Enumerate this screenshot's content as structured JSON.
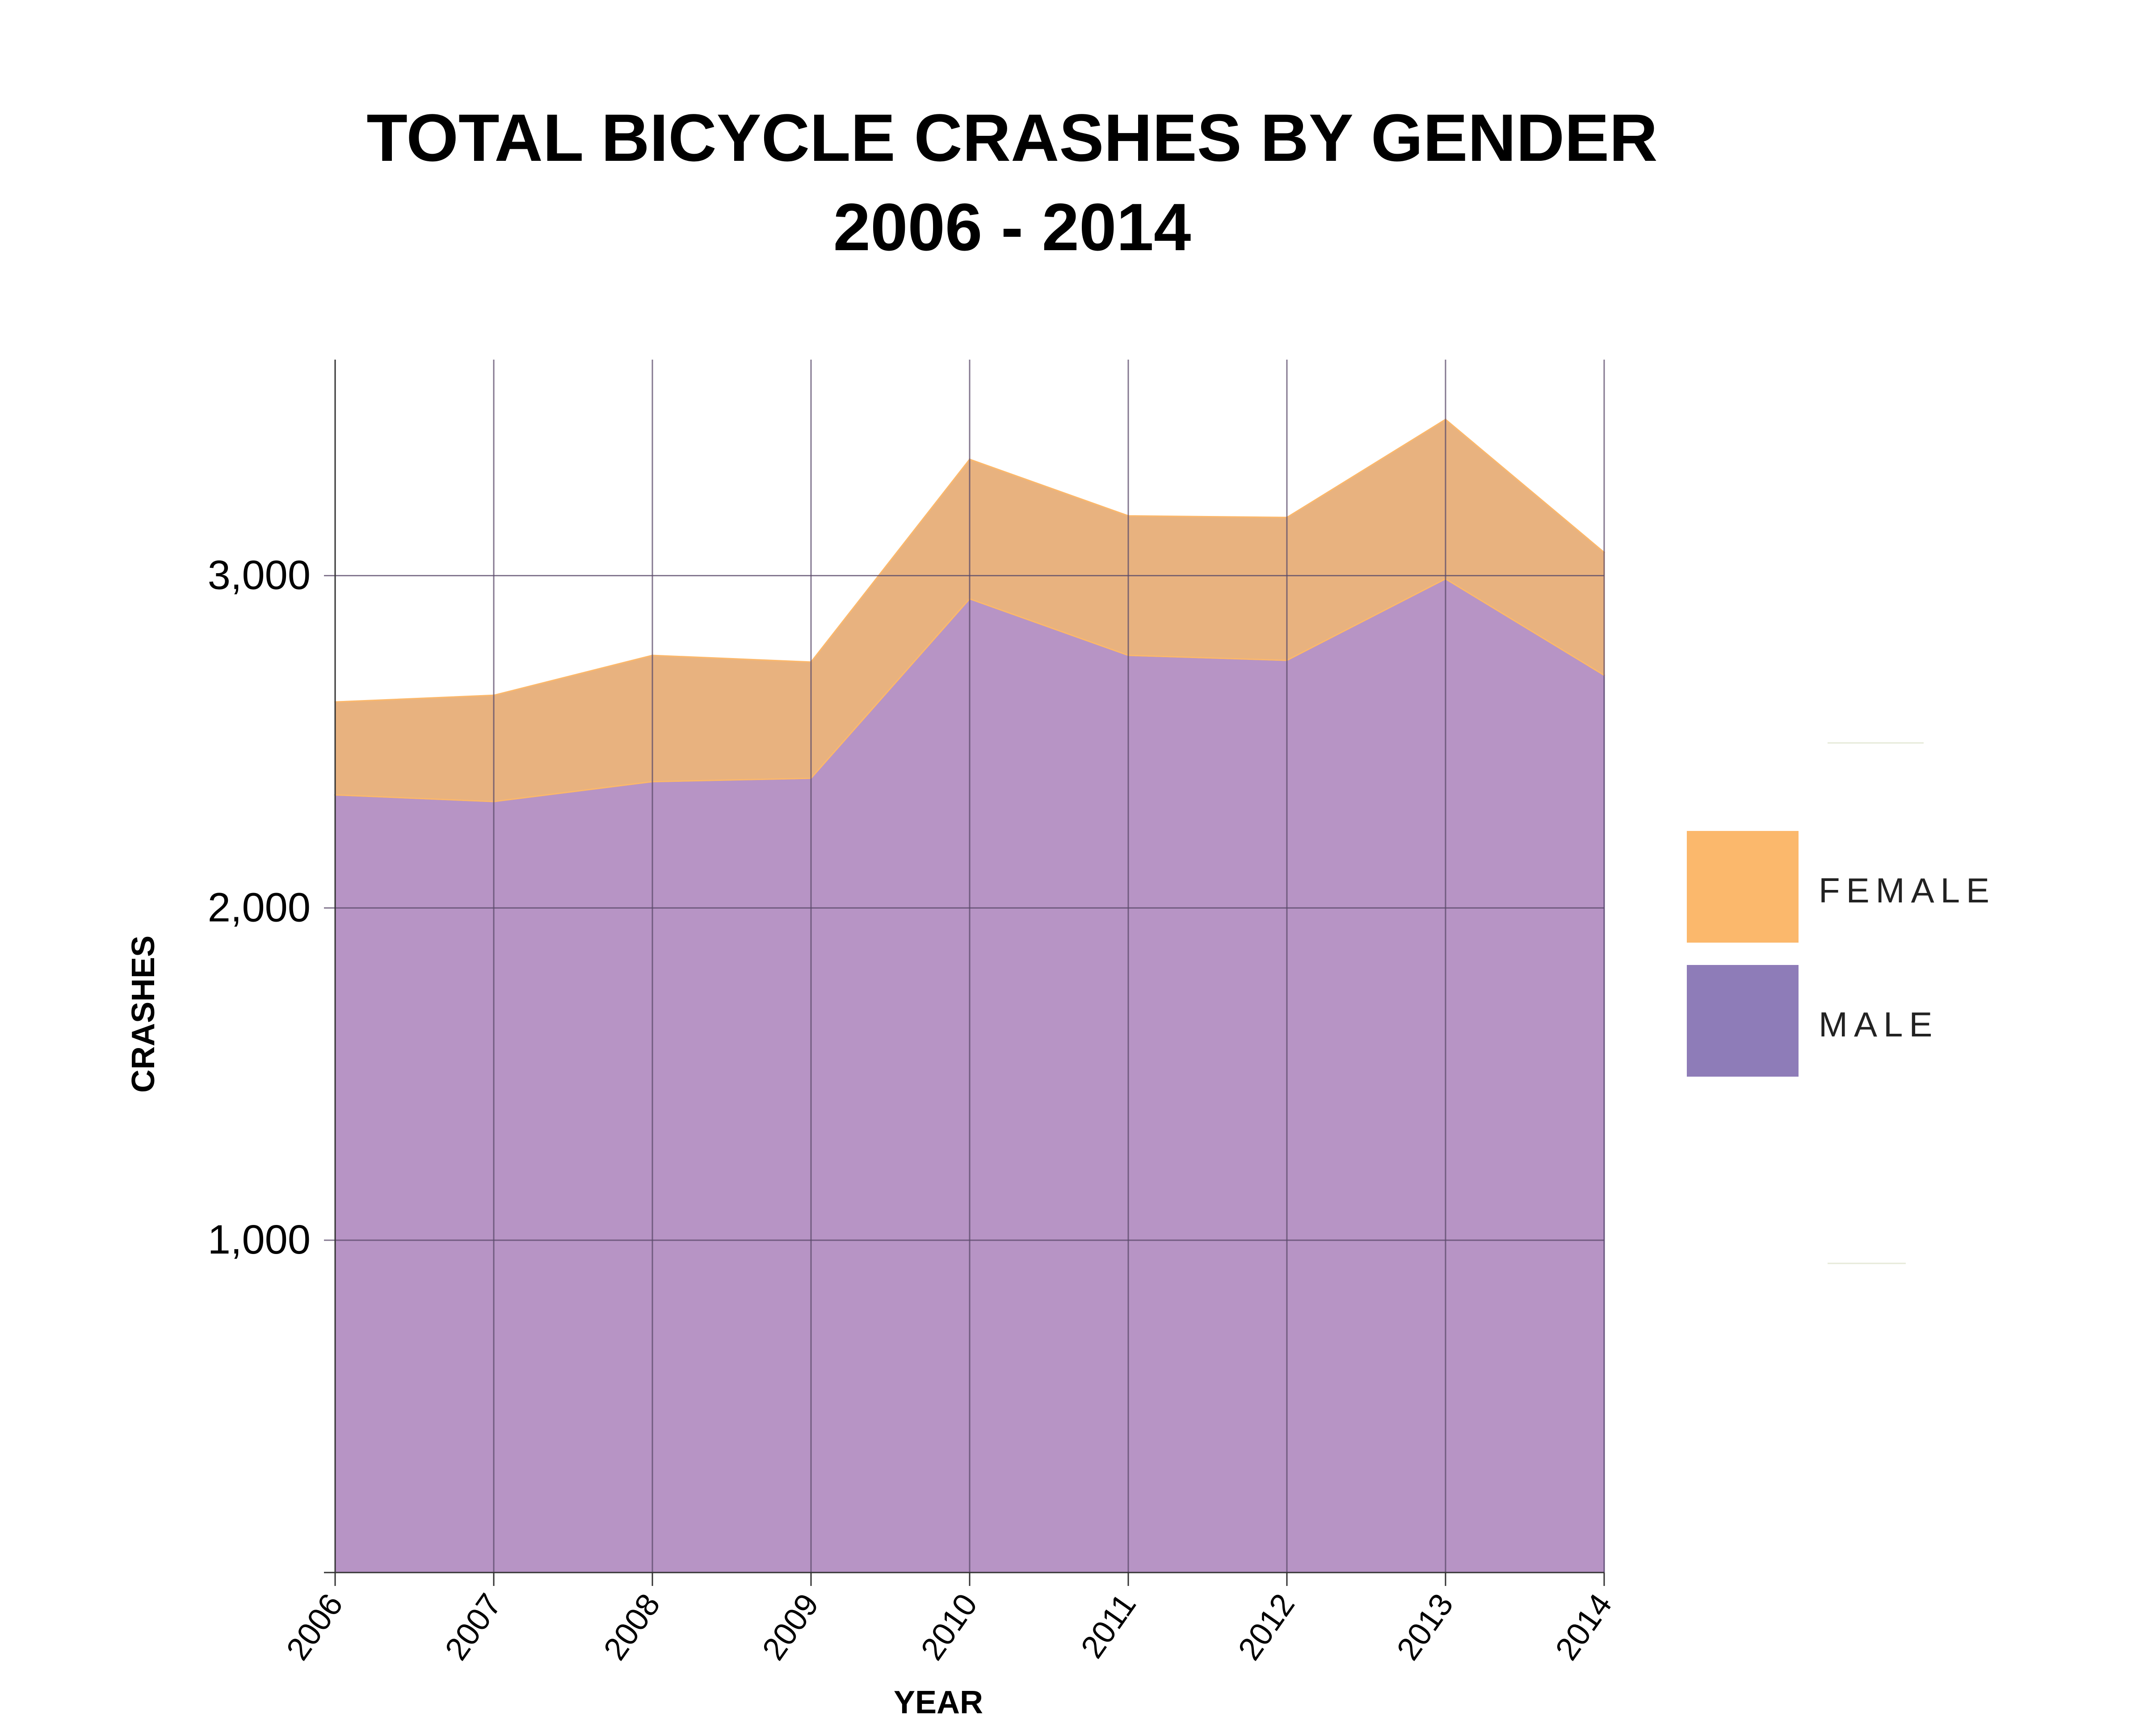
{
  "chart_data": {
    "type": "area",
    "stacked": true,
    "title_line1": "TOTAL BICYCLE CRASHES BY GENDER",
    "title_line2": "2006 - 2014",
    "xlabel": "YEAR",
    "ylabel": "CRASHES",
    "x": [
      "2006",
      "2007",
      "2008",
      "2009",
      "2010",
      "2011",
      "2012",
      "2013",
      "2014"
    ],
    "ylim": [
      0,
      3650
    ],
    "yticks": [
      1000,
      2000,
      3000
    ],
    "ytick_labels": [
      "1,000",
      "2,000",
      "3,000"
    ],
    "grid": true,
    "legend_position": "right",
    "series": [
      {
        "name": "MALE",
        "color": "#8e7cb8",
        "fill": "#b794c5",
        "values": [
          2340,
          2320,
          2380,
          2390,
          2930,
          2760,
          2745,
          2990,
          2700
        ]
      },
      {
        "name": "FEMALE",
        "color": "#fbb86c",
        "fill": "#e8b27f",
        "values": [
          280,
          320,
          380,
          350,
          420,
          420,
          430,
          480,
          370
        ]
      }
    ]
  }
}
